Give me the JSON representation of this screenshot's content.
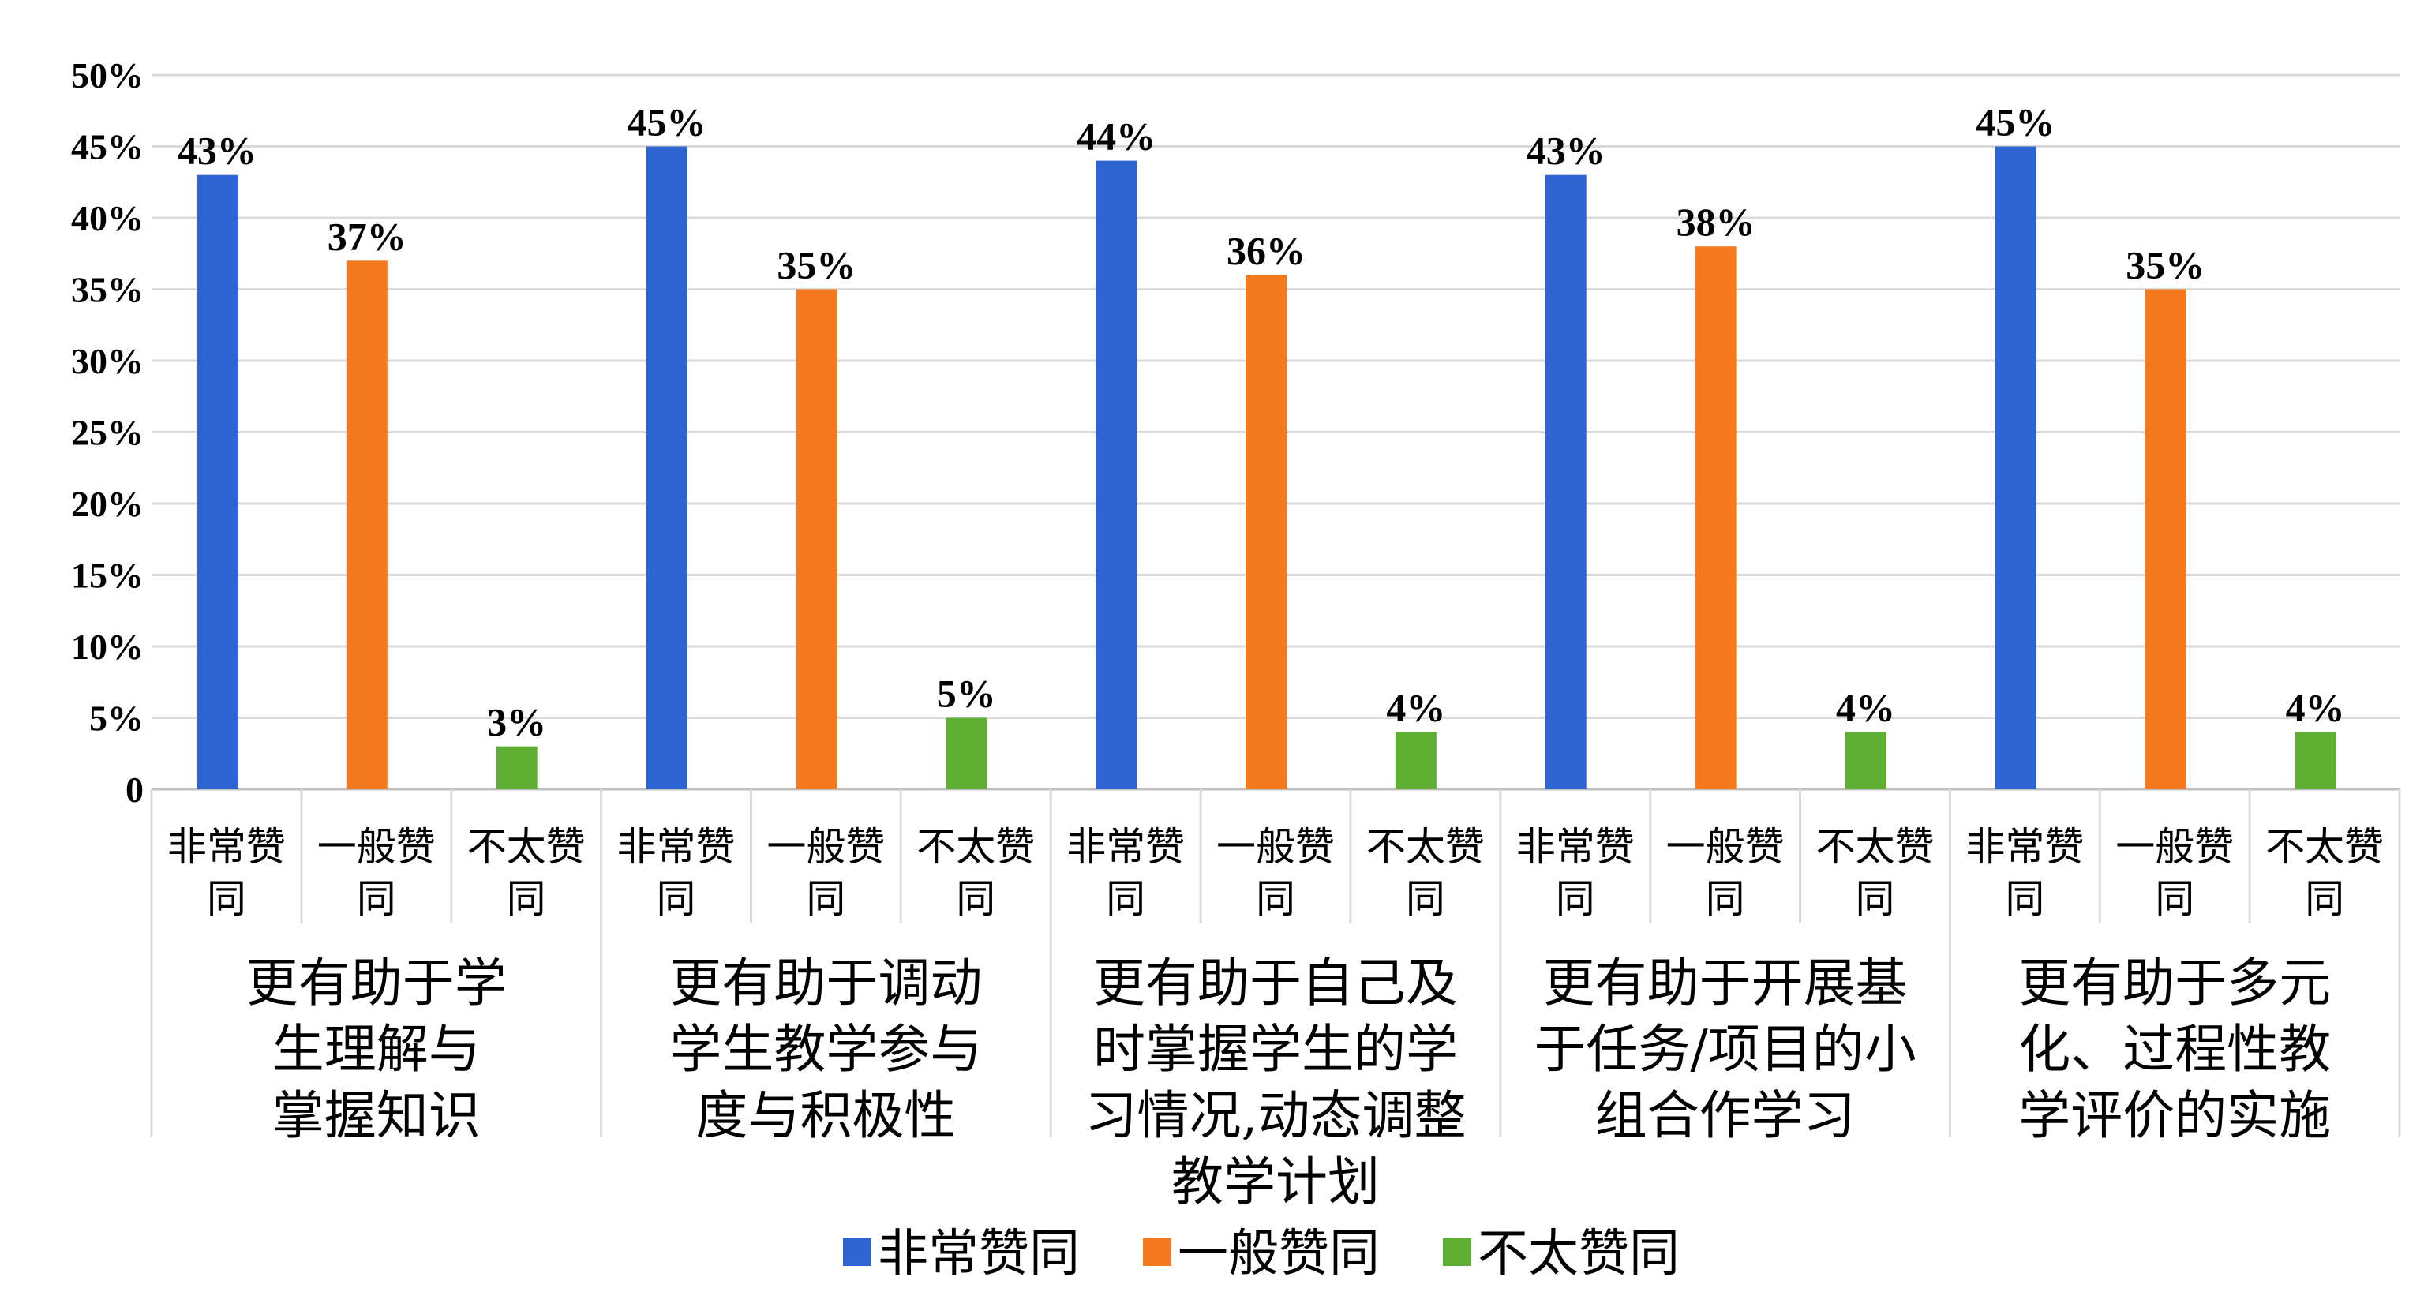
{
  "chart_data": {
    "type": "bar",
    "title": "",
    "xlabel": "",
    "ylabel": "",
    "ylim": [
      0,
      50
    ],
    "yticks": [
      "0",
      "5%",
      "10%",
      "15%",
      "20%",
      "25%",
      "30%",
      "35%",
      "40%",
      "45%",
      "50%"
    ],
    "grid": true,
    "legend_position": "bottom",
    "categories": [
      {
        "lines": [
          "更有助于学",
          "生理解与",
          "掌握知识"
        ]
      },
      {
        "lines": [
          "更有助于调动",
          "学生教学参与",
          "度与积极性"
        ]
      },
      {
        "lines": [
          "更有助于自己及",
          "时掌握学生的学",
          "习情况,动态调整",
          "教学计划"
        ]
      },
      {
        "lines": [
          "更有助于开展基",
          "于任务/项目的小",
          "组合作学习"
        ]
      },
      {
        "lines": [
          "更有助于多元",
          "化、过程性教",
          "学评价的实施"
        ]
      }
    ],
    "series": [
      {
        "name": "非常赞同",
        "sub_label": [
          "非常赞",
          "同"
        ],
        "color": "#2E64D2",
        "values": [
          43,
          45,
          44,
          43,
          45
        ],
        "labels": [
          "43%",
          "45%",
          "44%",
          "43%",
          "45%"
        ]
      },
      {
        "name": "一般赞同",
        "sub_label": [
          "一般赞",
          "同"
        ],
        "color": "#F57A1F",
        "values": [
          37,
          35,
          36,
          38,
          35
        ],
        "labels": [
          "37%",
          "35%",
          "36%",
          "38%",
          "35%"
        ]
      },
      {
        "name": "不太赞同",
        "sub_label": [
          "不太赞",
          "同"
        ],
        "color": "#5FAE34",
        "values": [
          3,
          5,
          4,
          4,
          4
        ],
        "labels": [
          "3%",
          "5%",
          "4%",
          "4%",
          "4%"
        ]
      }
    ]
  }
}
